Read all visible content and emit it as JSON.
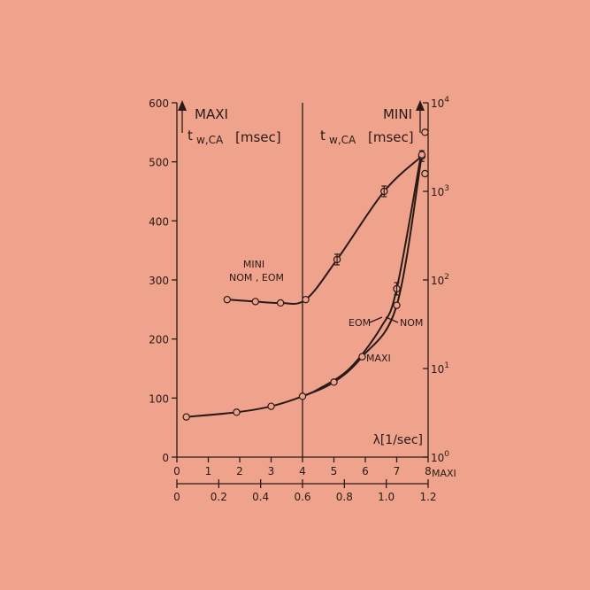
{
  "chart_data": {
    "type": "line",
    "x_axis_primary": {
      "ticks": [
        "0",
        "1",
        "2",
        "3",
        "4",
        "5",
        "6",
        "7",
        "8"
      ],
      "end_label": "MAXI",
      "range": [
        0,
        8
      ]
    },
    "x_axis_secondary": {
      "ticks": [
        "0",
        "0.2",
        "0.4",
        "0.6",
        "0.8",
        "1.0",
        "1.2"
      ],
      "range": [
        0,
        1.2
      ]
    },
    "y_axis_left": {
      "ticks": [
        "0",
        "100",
        "200",
        "300",
        "400",
        "500",
        "600"
      ],
      "range": [
        0,
        600
      ]
    },
    "y_axis_right": {
      "scale": "log",
      "range": [
        1,
        10000
      ],
      "ticks": [
        {
          "value": 1,
          "base": "10",
          "exp": "0"
        },
        {
          "value": 10,
          "base": "10",
          "exp": "1"
        },
        {
          "value": 100,
          "base": "10",
          "exp": "2"
        },
        {
          "value": 1000,
          "base": "10",
          "exp": "3"
        },
        {
          "value": 10000,
          "base": "10",
          "exp": "4"
        }
      ]
    },
    "labels": {
      "maxi_title": "MAXI",
      "maxi_unit": "[msec]",
      "mini_title": "MINI",
      "mini_unit": "[msec]",
      "t_symbol": "t",
      "t_sub": "w,CA",
      "lambda_label": "λ[1/sec]",
      "mini_nom_eom_1": "MINI",
      "mini_nom_eom_2": "NOM , EOM",
      "eom": "EOM",
      "nom": "NOM",
      "maxi_curve": "MAXI"
    },
    "series": [
      {
        "name": "MINI",
        "axis": "right-log",
        "x": [
          1.6,
          2.5,
          3.3,
          4.1,
          5.1,
          6.6,
          7.8
        ],
        "y": [
          60,
          57,
          55,
          60,
          170,
          1000,
          2500
        ],
        "error": [
          0,
          0,
          0,
          0,
          1,
          1,
          1
        ]
      },
      {
        "name": "MAXI",
        "axis": "left",
        "x": [
          0.3,
          1.9,
          3.0,
          4.0,
          5.0,
          5.9,
          7.0,
          7.8,
          7.9
        ],
        "y": [
          68,
          76,
          86,
          103,
          127,
          170,
          257,
          512,
          550
        ]
      },
      {
        "name": "EOM",
        "axis": "left",
        "x": [
          4.5,
          5.5,
          6.5,
          7.0,
          7.8
        ],
        "y": [
          115,
          150,
          220,
          285,
          520
        ],
        "marked_x": [
          7.0
        ],
        "marked_y": [
          285
        ]
      },
      {
        "name": "NOM",
        "axis": "left",
        "x": [
          7.9
        ],
        "y": [
          480
        ]
      }
    ]
  }
}
